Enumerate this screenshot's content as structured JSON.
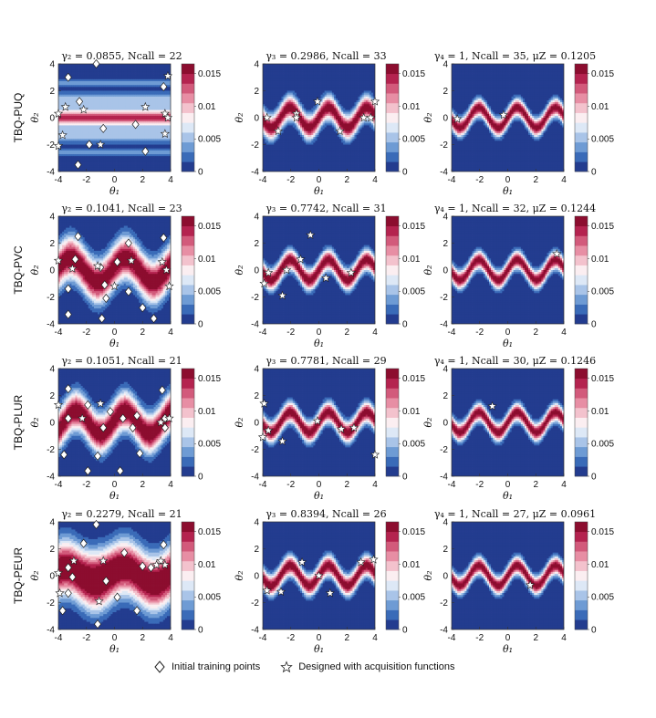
{
  "colors": {
    "scale": [
      "#233c8f",
      "#3a6bb8",
      "#6e9bd4",
      "#a9c4e8",
      "#dde8f6",
      "#fbeef1",
      "#f3c2cd",
      "#e78ea4",
      "#d25a7b",
      "#b4234f",
      "#8c0d2f"
    ],
    "marker_fill": "#ffffff",
    "marker_stroke": "#222222"
  },
  "row_labels": [
    "TBQ-PUQ",
    "TBQ-PVC",
    "TBQ-PLUR",
    "TBQ-PEUR"
  ],
  "legend": {
    "initial": "Initial training points",
    "designed": "Designed with acquisition functions"
  },
  "chart_data": [
    {
      "type": "heatmap",
      "row": 0,
      "col": 0,
      "title_sym": "γ₂",
      "title_val": "0.0855",
      "ncall": "22",
      "mu": "",
      "xlabel": "θ₁",
      "ylabel": "θ₂",
      "variant": "stripes",
      "diamonds": [
        [
          -1.3,
          4
        ],
        [
          -3.3,
          3
        ],
        [
          3.5,
          2.3
        ],
        [
          -2.5,
          1.2
        ],
        [
          1.5,
          -0.5
        ],
        [
          -0.8,
          -0.8
        ],
        [
          -1.8,
          -2
        ],
        [
          2.2,
          -2.5
        ],
        [
          -2.6,
          -3.5
        ]
      ],
      "stars": [
        [
          3.8,
          3.1
        ],
        [
          -3.5,
          0.8
        ],
        [
          -2.2,
          0.6
        ],
        [
          -4,
          0.3
        ],
        [
          3.6,
          0.3
        ],
        [
          2.2,
          0.8
        ],
        [
          3.8,
          0
        ],
        [
          -3.7,
          -1.3
        ],
        [
          3.6,
          -1.2
        ],
        [
          -4,
          -2.1
        ],
        [
          -1,
          -2
        ]
      ]
    },
    {
      "type": "heatmap",
      "row": 0,
      "col": 1,
      "title_sym": "γ₃",
      "title_val": "0.2986",
      "ncall": "33",
      "mu": "",
      "xlabel": "θ₁",
      "ylabel": "θ₂",
      "variant": "wave_wide",
      "diamonds": [],
      "stars": [
        [
          -0.1,
          1.2
        ],
        [
          4,
          1.2
        ],
        [
          -1.6,
          0.3
        ],
        [
          -1.6,
          0
        ],
        [
          -2.9,
          -1
        ],
        [
          1.5,
          -1
        ],
        [
          3.2,
          0
        ],
        [
          3.7,
          0
        ],
        [
          -3.7,
          0
        ]
      ]
    },
    {
      "type": "heatmap",
      "row": 0,
      "col": 2,
      "title_sym": "γ₄",
      "title_val": "1",
      "ncall": "35",
      "mu": "0.1205",
      "xlabel": "θ₁",
      "ylabel": "θ₂",
      "variant": "wave",
      "diamonds": [],
      "stars": [
        [
          -3.6,
          -0.1
        ],
        [
          -0.3,
          0.2
        ]
      ]
    },
    {
      "type": "heatmap",
      "row": 1,
      "col": 0,
      "title_sym": "γ₂",
      "title_val": "0.1041",
      "ncall": "23",
      "mu": "",
      "xlabel": "θ₁",
      "ylabel": "θ₂",
      "variant": "blob_wide",
      "diamonds": [
        [
          -2.6,
          2.5
        ],
        [
          1,
          2
        ],
        [
          3.5,
          2.4
        ],
        [
          -2.8,
          0.8
        ],
        [
          0.2,
          0.6
        ],
        [
          -1,
          0.2
        ],
        [
          -3.3,
          -1.4
        ],
        [
          -0.7,
          -1.1
        ],
        [
          1,
          -1.6
        ],
        [
          -0.6,
          -2.1
        ],
        [
          2,
          -2.8
        ],
        [
          -3.3,
          -3.3
        ],
        [
          2.8,
          -3.6
        ],
        [
          -0.9,
          -3.6
        ]
      ],
      "stars": [
        [
          -4,
          0.7
        ],
        [
          -3,
          0.1
        ],
        [
          1.2,
          0.7
        ],
        [
          3.4,
          0.6
        ],
        [
          3.7,
          0
        ],
        [
          3.9,
          -1.2
        ],
        [
          0,
          -1.2
        ],
        [
          -1.2,
          0.3
        ]
      ]
    },
    {
      "type": "heatmap",
      "row": 1,
      "col": 1,
      "title_sym": "γ₃",
      "title_val": "0.7742",
      "ncall": "31",
      "mu": "",
      "xlabel": "θ₁",
      "ylabel": "θ₂",
      "variant": "wave_mid",
      "diamonds": [],
      "stars": [
        [
          -0.6,
          2.6
        ],
        [
          -1.3,
          0.8
        ],
        [
          -3.6,
          -0.2
        ],
        [
          -2.3,
          0
        ],
        [
          -3.9,
          -1
        ],
        [
          -2.6,
          -1.9
        ],
        [
          0.5,
          -0.6
        ],
        [
          2.3,
          -0.2
        ]
      ]
    },
    {
      "type": "heatmap",
      "row": 1,
      "col": 2,
      "title_sym": "γ₄",
      "title_val": "1",
      "ncall": "32",
      "mu": "0.1244",
      "xlabel": "θ₁",
      "ylabel": "θ₂",
      "variant": "wave",
      "diamonds": [],
      "stars": [
        [
          3.5,
          1.2
        ]
      ]
    },
    {
      "type": "heatmap",
      "row": 2,
      "col": 0,
      "title_sym": "γ₂",
      "title_val": "0.1051",
      "ncall": "21",
      "mu": "",
      "xlabel": "θ₁",
      "ylabel": "θ₂",
      "variant": "blob_mid",
      "diamonds": [
        [
          -3.3,
          2.5
        ],
        [
          -1.9,
          1.3
        ],
        [
          -3.3,
          0.3
        ],
        [
          -0.3,
          0.8
        ],
        [
          0.6,
          0.3
        ],
        [
          1.6,
          0.5
        ],
        [
          -0.8,
          -0.4
        ],
        [
          1.3,
          -0.4
        ],
        [
          -3.6,
          -2.4
        ],
        [
          1.8,
          -2.3
        ],
        [
          3.4,
          2.4
        ],
        [
          3.6,
          -0.4
        ],
        [
          3.6,
          0.3
        ],
        [
          -1.9,
          -3.6
        ],
        [
          0.4,
          -3.6
        ],
        [
          -1.2,
          -2.5
        ]
      ],
      "stars": [
        [
          -1,
          1.4
        ],
        [
          -2.3,
          0.3
        ],
        [
          3.3,
          0
        ],
        [
          3.9,
          0.3
        ],
        [
          -4,
          1.3
        ]
      ]
    },
    {
      "type": "heatmap",
      "row": 2,
      "col": 1,
      "title_sym": "γ₃",
      "title_val": "0.7781",
      "ncall": "29",
      "mu": "",
      "xlabel": "θ₁",
      "ylabel": "θ₂",
      "variant": "wave_mid",
      "diamonds": [],
      "stars": [
        [
          -3.9,
          1.4
        ],
        [
          -3.6,
          -0.6
        ],
        [
          -2.6,
          -1.4
        ],
        [
          -0.1,
          0.1
        ],
        [
          1.6,
          -0.5
        ],
        [
          2.5,
          -0.4
        ],
        [
          4,
          -2.4
        ],
        [
          -4,
          -1.1
        ]
      ]
    },
    {
      "type": "heatmap",
      "row": 2,
      "col": 2,
      "title_sym": "γ₄",
      "title_val": "1",
      "ncall": "30",
      "mu": "0.1246",
      "xlabel": "θ₁",
      "ylabel": "θ₂",
      "variant": "wave",
      "diamonds": [],
      "stars": [
        [
          -1.1,
          1.2
        ]
      ]
    },
    {
      "type": "heatmap",
      "row": 3,
      "col": 0,
      "title_sym": "γ₂",
      "title_val": "0.2279",
      "ncall": "21",
      "mu": "",
      "xlabel": "θ₁",
      "ylabel": "θ₂",
      "variant": "blob_large",
      "diamonds": [
        [
          -1.3,
          3.8
        ],
        [
          -2.2,
          2.4
        ],
        [
          3.5,
          2.3
        ],
        [
          0.7,
          1.7
        ],
        [
          -3.3,
          0.6
        ],
        [
          2,
          0.7
        ],
        [
          -0.6,
          -0.4
        ],
        [
          2.6,
          0.6
        ],
        [
          -3,
          -0.1
        ],
        [
          0.2,
          -1.6
        ],
        [
          1.6,
          -2.6
        ],
        [
          -3.7,
          -2.6
        ],
        [
          -1.2,
          -3.6
        ],
        [
          -3.3,
          -1.3
        ]
      ],
      "stars": [
        [
          -2.9,
          1.1
        ],
        [
          -0.8,
          1.1
        ],
        [
          -1.1,
          -1.9
        ],
        [
          3.6,
          0.8
        ],
        [
          3,
          0.8
        ],
        [
          3.3,
          1.1
        ],
        [
          -4,
          0.2
        ],
        [
          -3.9,
          -1.3
        ]
      ]
    },
    {
      "type": "heatmap",
      "row": 3,
      "col": 1,
      "title_sym": "γ₃",
      "title_val": "0.8394",
      "ncall": "26",
      "mu": "",
      "xlabel": "θ₁",
      "ylabel": "θ₂",
      "variant": "wave_mid",
      "diamonds": [],
      "stars": [
        [
          -1.2,
          1
        ],
        [
          3,
          1
        ],
        [
          3.9,
          1.2
        ],
        [
          0,
          0
        ],
        [
          -2.7,
          -1.2
        ],
        [
          -3.7,
          -1.1
        ],
        [
          0.8,
          -1.3
        ]
      ]
    },
    {
      "type": "heatmap",
      "row": 3,
      "col": 2,
      "title_sym": "γ₄",
      "title_val": "1",
      "ncall": "27",
      "mu": "0.0961",
      "xlabel": "θ₁",
      "ylabel": "θ₂",
      "variant": "wave",
      "diamonds": [],
      "stars": [
        [
          1.6,
          -0.7
        ]
      ]
    }
  ],
  "ticks": {
    "axis": [
      "-4",
      "-2",
      "0",
      "2",
      "4"
    ],
    "colorbar": [
      "0.015",
      "0.01",
      "0.005",
      "0"
    ]
  }
}
